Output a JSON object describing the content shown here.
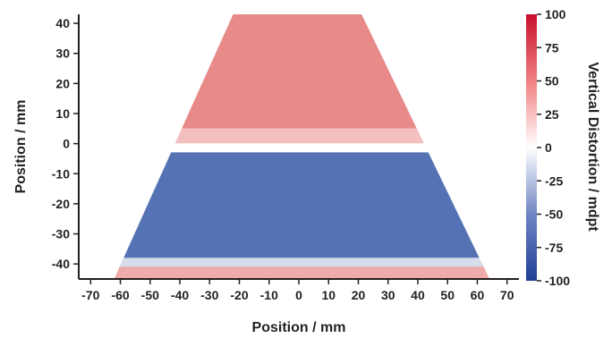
{
  "chart_data": {
    "type": "heatmap",
    "xlabel": "Position / mm",
    "ylabel": "Position / mm",
    "colorbar_label": "Vertical Distortion / mdpt",
    "xlim": [
      -74,
      74
    ],
    "ylim": [
      -45,
      43
    ],
    "x_ticks": [
      -70,
      -60,
      -50,
      -40,
      -30,
      -20,
      -10,
      0,
      10,
      20,
      30,
      40,
      50,
      60,
      70
    ],
    "y_ticks": [
      -40,
      -30,
      -20,
      -10,
      0,
      10,
      20,
      30,
      40
    ],
    "colorbar_range": [
      -100,
      100
    ],
    "colorbar_ticks": [
      -100,
      -75,
      -50,
      -25,
      0,
      25,
      50,
      75,
      100
    ],
    "colormap": [
      "#2b4fa1",
      "#ffffff",
      "#d62a2a"
    ],
    "region": {
      "shape": "trapezoid",
      "top_y": 43,
      "top_x": [
        -22,
        21
      ],
      "bottom_y": -45,
      "bottom_x": [
        -62,
        64
      ]
    },
    "bands": [
      {
        "y": [
          5,
          43
        ],
        "value": 55
      },
      {
        "y": [
          0,
          5
        ],
        "value": 30
      },
      {
        "y": [
          -3,
          0
        ],
        "value": 0
      },
      {
        "y": [
          -38,
          -3
        ],
        "value": -80
      },
      {
        "y": [
          -41,
          -38
        ],
        "value": -20
      },
      {
        "y": [
          -45,
          -41
        ],
        "value": 40
      }
    ]
  }
}
